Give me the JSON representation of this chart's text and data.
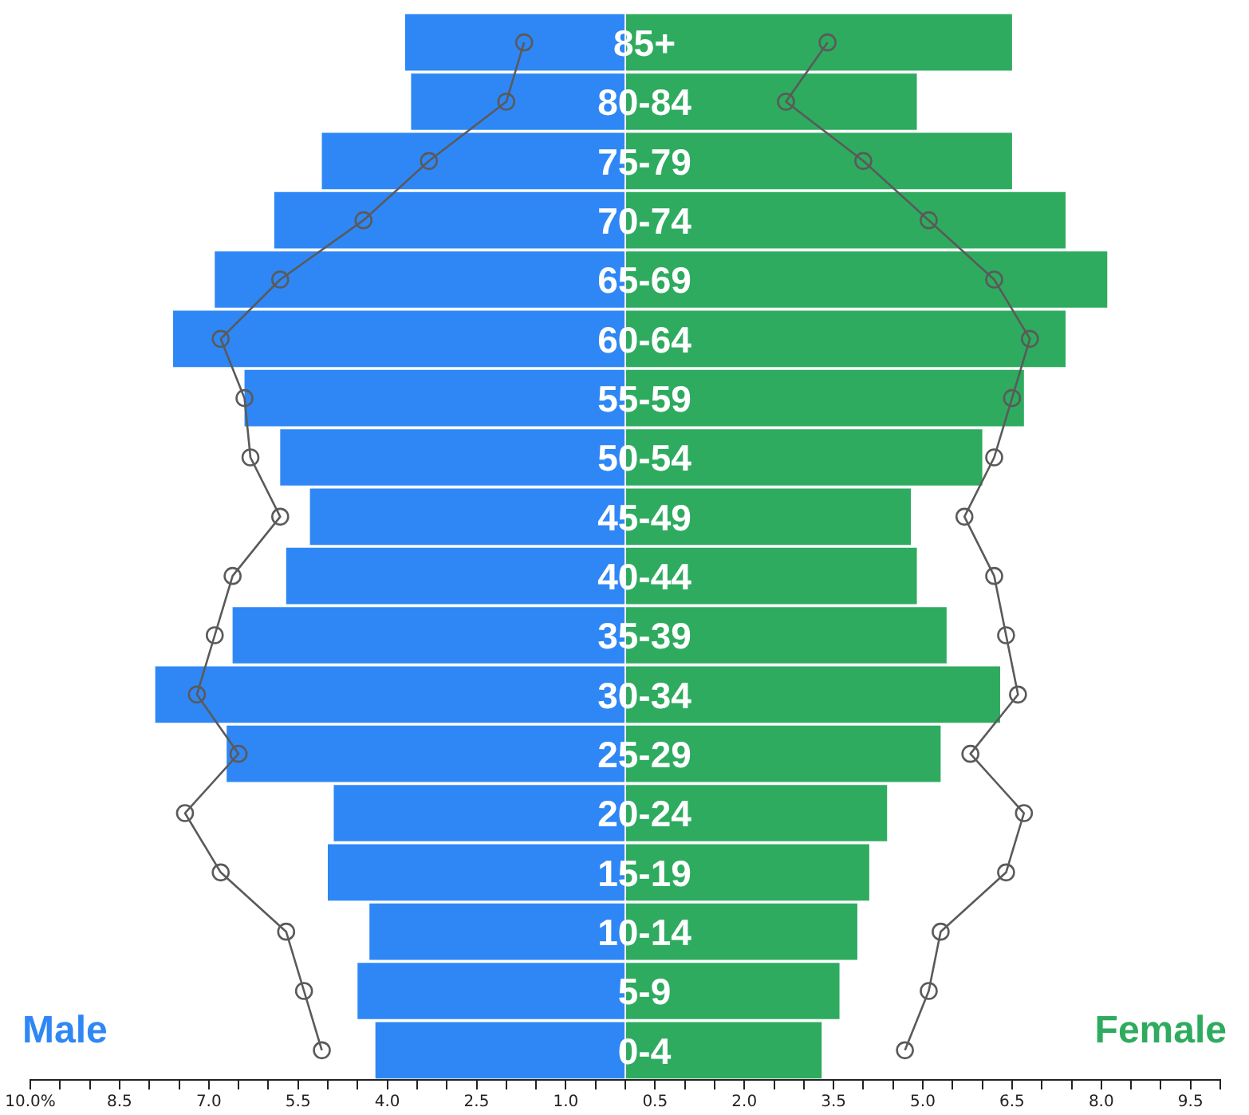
{
  "chart_data": {
    "type": "bar",
    "orientation": "horizontal",
    "stacked": true,
    "categories": [
      "85+",
      "80-84",
      "75-79",
      "70-74",
      "65-69",
      "60-64",
      "55-59",
      "50-54",
      "45-49",
      "40-44",
      "35-39",
      "30-34",
      "25-29",
      "20-24",
      "15-19",
      "10-14",
      "5-9",
      "0-4"
    ],
    "series": [
      {
        "name": "Male",
        "color": "#2f87f5",
        "values": [
          -3.7,
          -3.6,
          -5.1,
          -5.9,
          -6.9,
          -7.6,
          -6.4,
          -5.8,
          -5.3,
          -5.7,
          -6.6,
          -7.9,
          -6.7,
          -4.9,
          -5.0,
          -4.3,
          -4.5,
          -4.2
        ]
      },
      {
        "name": "Female",
        "color": "#2eab5f",
        "values": [
          6.5,
          4.9,
          6.5,
          7.4,
          8.1,
          7.4,
          6.7,
          6.0,
          4.8,
          4.9,
          5.4,
          6.3,
          5.3,
          4.4,
          4.1,
          3.9,
          3.6,
          3.3
        ]
      },
      {
        "type": "line",
        "color": "#5a5a5a",
        "values": [
          -1.7,
          -2.0,
          -3.3,
          -4.4,
          -5.8,
          -6.8,
          -6.4,
          -6.3,
          -5.8,
          -6.6,
          -6.9,
          -7.2,
          -6.5,
          -7.4,
          -6.8,
          -5.7,
          -5.4,
          -5.1
        ]
      },
      {
        "type": "line",
        "color": "#5a5a5a",
        "values": [
          3.4,
          2.7,
          4.0,
          5.1,
          6.2,
          6.8,
          6.5,
          6.2,
          5.7,
          6.2,
          6.4,
          6.6,
          5.8,
          6.7,
          6.4,
          5.3,
          5.1,
          4.7
        ]
      }
    ],
    "marker": "circle",
    "line_style": "solid",
    "grid": false,
    "legend": false,
    "xlim": [
      -10,
      10
    ],
    "xticks": [
      {
        "value": -10,
        "label": "10.0%"
      },
      {
        "value": -9.5,
        "label": null
      },
      {
        "value": -9,
        "label": null
      },
      {
        "value": -8.5,
        "label": "8.5"
      },
      {
        "value": -8,
        "label": null
      },
      {
        "value": -7.5,
        "label": null
      },
      {
        "value": -7,
        "label": "7.0"
      },
      {
        "value": -6.5,
        "label": null
      },
      {
        "value": -6,
        "label": null
      },
      {
        "value": -5.5,
        "label": "5.5"
      },
      {
        "value": -5,
        "label": null
      },
      {
        "value": -4.5,
        "label": null
      },
      {
        "value": -4,
        "label": "4.0"
      },
      {
        "value": -3.5,
        "label": null
      },
      {
        "value": -3,
        "label": null
      },
      {
        "value": -2.5,
        "label": "2.5"
      },
      {
        "value": -2,
        "label": null
      },
      {
        "value": -1.5,
        "label": null
      },
      {
        "value": -1,
        "label": "1.0"
      },
      {
        "value": -0.5,
        "label": null
      },
      {
        "value": 0,
        "label": null
      },
      {
        "value": 0.5,
        "label": "0.5"
      },
      {
        "value": 1,
        "label": null
      },
      {
        "value": 1.5,
        "label": null
      },
      {
        "value": 2,
        "label": "2.0"
      },
      {
        "value": 2.5,
        "label": null
      },
      {
        "value": 3,
        "label": null
      },
      {
        "value": 3.5,
        "label": "3.5"
      },
      {
        "value": 4,
        "label": null
      },
      {
        "value": 4.5,
        "label": null
      },
      {
        "value": 5,
        "label": "5.0"
      },
      {
        "value": 5.5,
        "label": null
      },
      {
        "value": 6,
        "label": null
      },
      {
        "value": 6.5,
        "label": "6.5"
      },
      {
        "value": 7,
        "label": null
      },
      {
        "value": 7.5,
        "label": null
      },
      {
        "value": 8,
        "label": "8.0"
      },
      {
        "value": 8.5,
        "label": null
      },
      {
        "value": 9,
        "label": null
      },
      {
        "value": 9.5,
        "label": "9.5"
      },
      {
        "value": 10,
        "label": null
      }
    ]
  }
}
